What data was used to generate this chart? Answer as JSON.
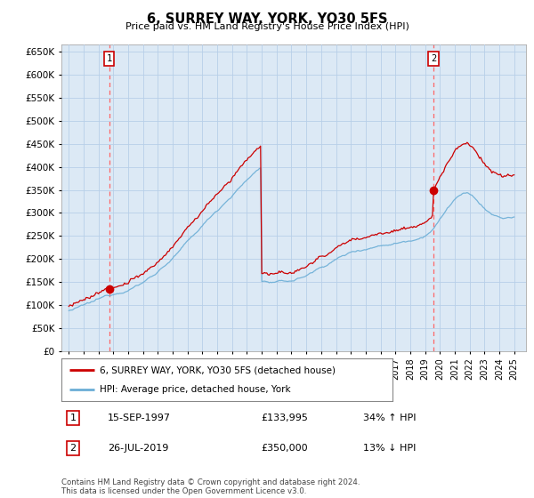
{
  "title": "6, SURREY WAY, YORK, YO30 5FS",
  "subtitle": "Price paid vs. HM Land Registry's House Price Index (HPI)",
  "ytick_vals": [
    0,
    50000,
    100000,
    150000,
    200000,
    250000,
    300000,
    350000,
    400000,
    450000,
    500000,
    550000,
    600000,
    650000
  ],
  "sale1_year": 1997.72,
  "sale1_price": 133995,
  "sale2_year": 2019.56,
  "sale2_price": 350000,
  "legend_line1": "6, SURREY WAY, YORK, YO30 5FS (detached house)",
  "legend_line2": "HPI: Average price, detached house, York",
  "row1": [
    "1",
    "15-SEP-1997",
    "£133,995",
    "34% ↑ HPI"
  ],
  "row2": [
    "2",
    "26-JUL-2019",
    "£350,000",
    "13% ↓ HPI"
  ],
  "footnote": "Contains HM Land Registry data © Crown copyright and database right 2024.\nThis data is licensed under the Open Government Licence v3.0.",
  "hpi_color": "#6baed6",
  "price_color": "#cc0000",
  "dashed_color": "#ff6666",
  "bg_color": "#dce9f5",
  "grid_color": "#b8cfe8",
  "outer_bg": "#ffffff"
}
